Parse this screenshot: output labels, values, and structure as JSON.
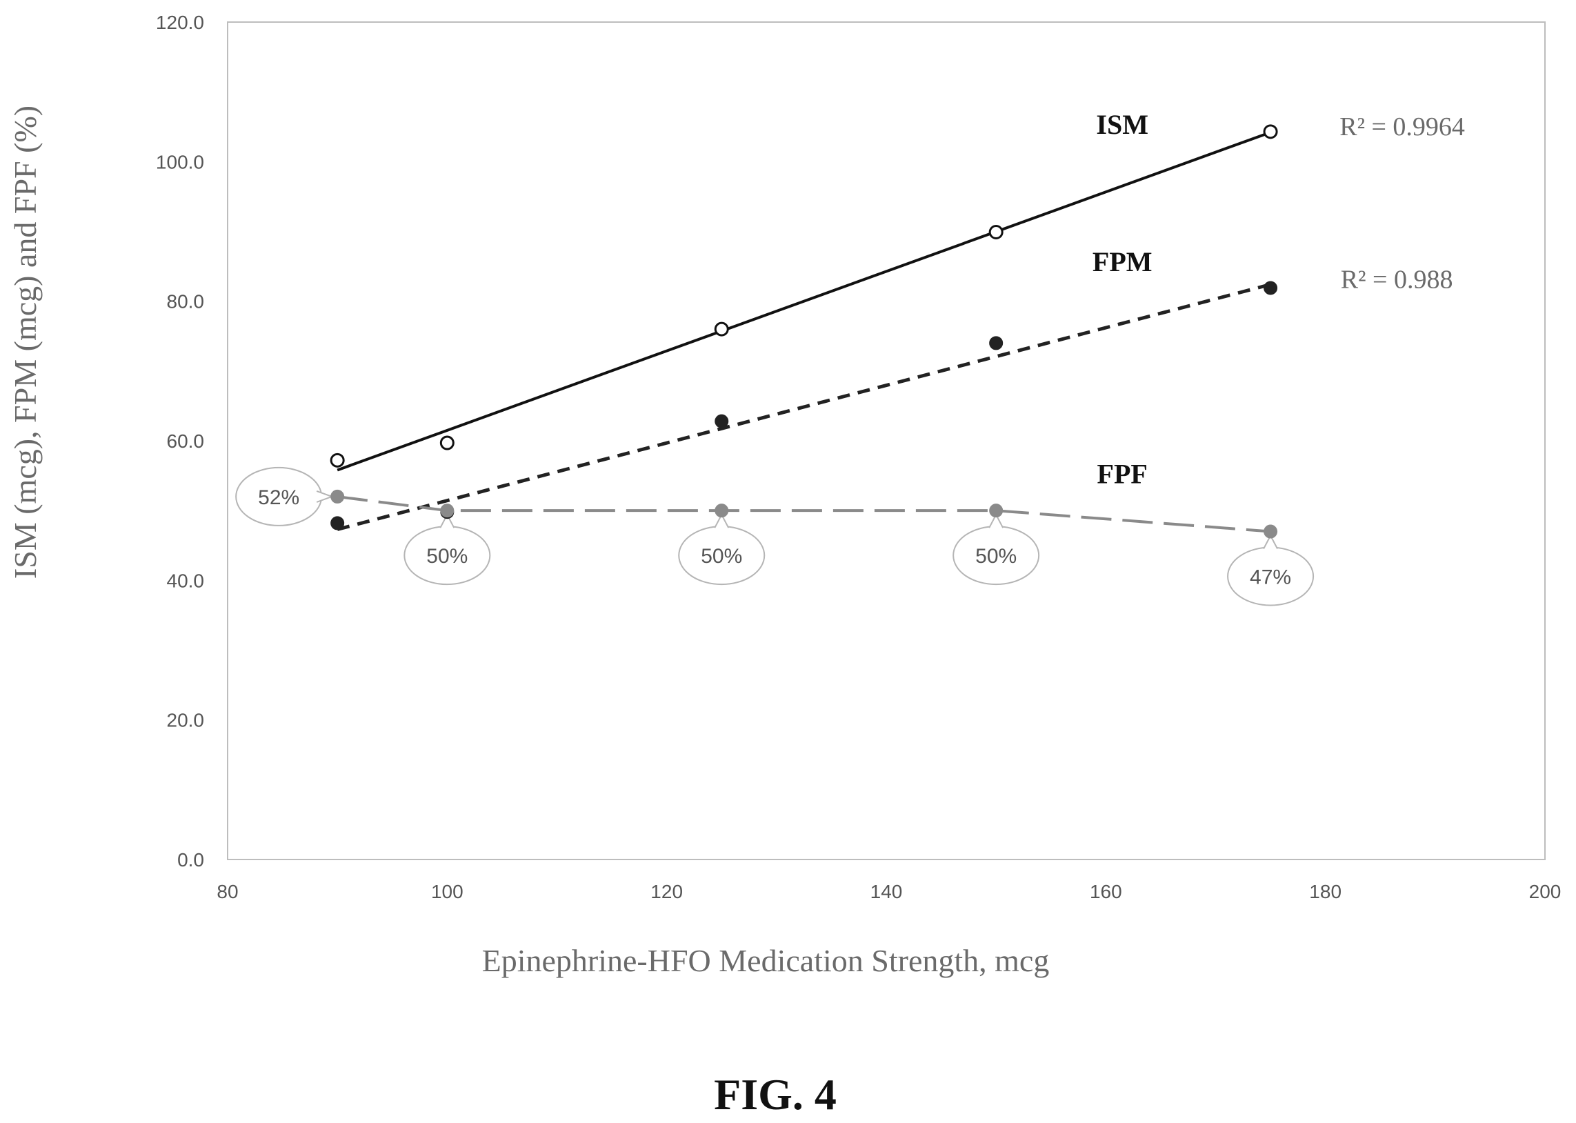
{
  "figure_label": "FIG. 4",
  "chart_data": {
    "type": "scatter",
    "xlabel": "Epinephrine-HFO Medication Strength, mcg",
    "ylabel": "ISM (mcg), FPM (mcg) and FPF (%)",
    "xlim": [
      80,
      200
    ],
    "ylim": [
      0,
      120
    ],
    "x_ticks": [
      "80",
      "100",
      "120",
      "140",
      "160",
      "180",
      "200"
    ],
    "y_ticks": [
      "0.0",
      "20.0",
      "40.0",
      "60.0",
      "80.0",
      "100.0",
      "120.0"
    ],
    "grid": false,
    "series": [
      {
        "name": "ISM",
        "marker": "open-circle",
        "color": "#111111",
        "x": [
          90,
          100,
          125,
          150,
          175
        ],
        "y": [
          57.2,
          59.7,
          76.0,
          89.9,
          104.3
        ],
        "trendline": {
          "style": "solid",
          "y_start": 55.8,
          "y_end": 104.2,
          "r2_label": "R² = 0.9964"
        }
      },
      {
        "name": "FPM",
        "marker": "filled-circle",
        "color": "#222222",
        "x": [
          90,
          100,
          125,
          150,
          175
        ],
        "y": [
          48.2,
          49.8,
          62.8,
          74.0,
          81.9
        ],
        "trendline": {
          "style": "dashed",
          "y_start": 47.3,
          "y_end": 82.4,
          "r2_label": "R² = 0.988"
        }
      },
      {
        "name": "FPF",
        "marker": "gray-circle",
        "color": "#8a8a8a",
        "x": [
          90,
          100,
          125,
          150,
          175
        ],
        "y": [
          52,
          50,
          50,
          50,
          47
        ],
        "data_labels": [
          "52%",
          "50%",
          "50%",
          "50%",
          "47%"
        ],
        "connector": "long-dash"
      }
    ]
  }
}
